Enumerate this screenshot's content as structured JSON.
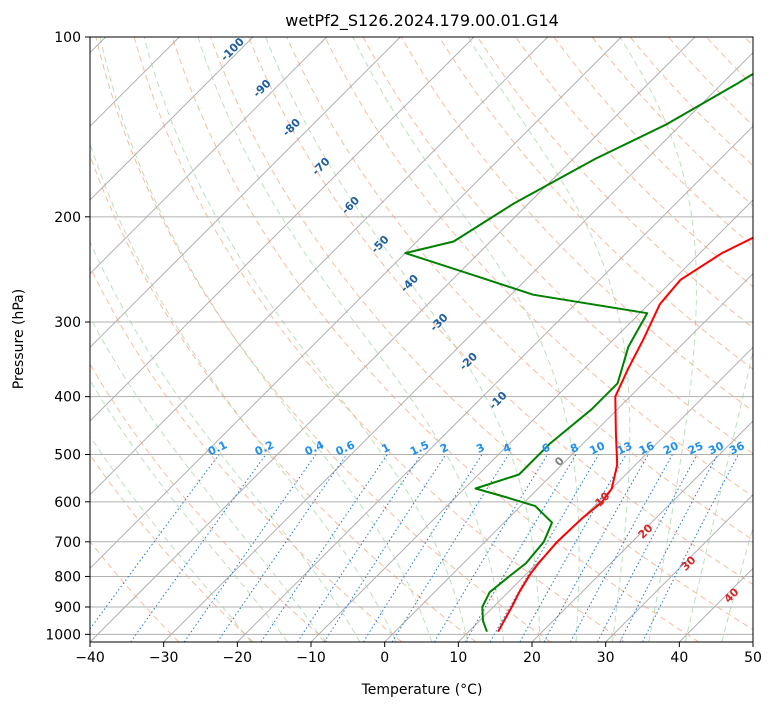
{
  "chart_data": {
    "type": "line",
    "title": "wetPf2_S126.2024.179.00.01.G14",
    "xlabel": "Temperature (°C)",
    "ylabel": "Pressure (hPa)",
    "xlim": [
      -40,
      50
    ],
    "ylim": [
      1030,
      100
    ],
    "y_scale": "log",
    "grid": true,
    "x_ticks": [
      -40,
      -30,
      -20,
      -10,
      0,
      10,
      20,
      30,
      40,
      50
    ],
    "y_ticks": [
      100,
      200,
      300,
      400,
      500,
      600,
      700,
      800,
      900,
      1000
    ],
    "series": [
      {
        "color": "#ff0000",
        "points": [
          [
            0.5,
            100
          ],
          [
            1.0,
            120
          ],
          [
            1.2,
            150
          ],
          [
            0.0,
            180
          ],
          [
            -2.0,
            200
          ],
          [
            -7.0,
            230
          ],
          [
            -9.0,
            255
          ],
          [
            -8.5,
            280
          ],
          [
            -6.0,
            320
          ],
          [
            -4.0,
            360
          ],
          [
            -2.0,
            400
          ],
          [
            3.0,
            460
          ],
          [
            7.5,
            520
          ],
          [
            10.0,
            570
          ],
          [
            10.5,
            600
          ],
          [
            10.0,
            640
          ],
          [
            9.8,
            700
          ],
          [
            10.2,
            760
          ],
          [
            10.5,
            790
          ],
          [
            11.5,
            850
          ],
          [
            12.5,
            900
          ],
          [
            13.5,
            960
          ],
          [
            14.0,
            990
          ]
        ]
      },
      {
        "color": "#008000",
        "points": [
          [
            -24.0,
            100
          ],
          [
            -28.0,
            120
          ],
          [
            -32.0,
            140
          ],
          [
            -37.0,
            160
          ],
          [
            -42.0,
            190
          ],
          [
            -45.0,
            220
          ],
          [
            -50.0,
            230
          ],
          [
            -38.0,
            250
          ],
          [
            -27.0,
            270
          ],
          [
            -9.0,
            290
          ],
          [
            -7.0,
            330
          ],
          [
            -3.5,
            380
          ],
          [
            -3.5,
            420
          ],
          [
            -4.5,
            480
          ],
          [
            -4.5,
            540
          ],
          [
            -8.5,
            570
          ],
          [
            -3.0,
            590
          ],
          [
            2.0,
            610
          ],
          [
            6.5,
            650
          ],
          [
            8.0,
            700
          ],
          [
            8.5,
            760
          ],
          [
            8.0,
            800
          ],
          [
            7.5,
            850
          ],
          [
            8.5,
            900
          ],
          [
            10.5,
            950
          ],
          [
            12.5,
            990
          ]
        ]
      }
    ],
    "dry_adiabat_labels": [
      "-100",
      "-90",
      "-80",
      "-70",
      "-60",
      "-50",
      "-40",
      "-30",
      "-20",
      "-10"
    ],
    "mixing_ratio_labels": [
      "0.1",
      "0.2",
      "0.4",
      "0.6",
      "1",
      "1.5",
      "2",
      "3",
      "4",
      "6",
      "8",
      "10",
      "13",
      "16",
      "20",
      "25",
      "30",
      "36"
    ],
    "moist_adiabat_labels": [
      "0",
      "10",
      "20",
      "30",
      "40"
    ]
  }
}
